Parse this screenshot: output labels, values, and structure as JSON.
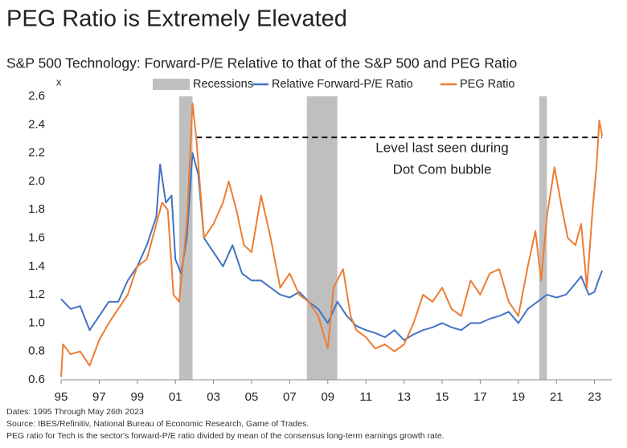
{
  "chart_data": {
    "type": "line",
    "title": "PEG Ratio is Extremely Elevated",
    "subtitle": "S&P 500 Technology: Forward-P/E Relative to that of the S&P 500 and PEG Ratio",
    "y_axis_label": "x",
    "annotation": [
      "Level last seen during",
      "Dot Com bubble"
    ],
    "reference_line": {
      "y": 2.31,
      "xlim": [
        2002.1,
        2023.4
      ]
    },
    "notes": [
      "Dates: 1995 Through May 26th 2023",
      "Source: IBES/Refinitiv, National Bureau of Economic Research, Game of Trades.",
      "PEG ratio for Tech is the sector's forward-P/E ratio divided by mean of the consensus long-term earnings growth rate."
    ],
    "recessions": {
      "name": "Recessions",
      "color": "#bfbfbf",
      "ranges": [
        [
          2001.2,
          2001.9
        ],
        [
          2007.9,
          2009.5
        ],
        [
          2020.1,
          2020.5
        ]
      ]
    },
    "xlim": [
      1995,
      2023.9
    ],
    "xticks": [
      {
        "value": 1995,
        "label": "95"
      },
      {
        "value": 1997,
        "label": "97"
      },
      {
        "value": 1999,
        "label": "99"
      },
      {
        "value": 2001,
        "label": "01"
      },
      {
        "value": 2003,
        "label": "03"
      },
      {
        "value": 2005,
        "label": "05"
      },
      {
        "value": 2007,
        "label": "07"
      },
      {
        "value": 2009,
        "label": "09"
      },
      {
        "value": 2011,
        "label": "11"
      },
      {
        "value": 2013,
        "label": "13"
      },
      {
        "value": 2015,
        "label": "15"
      },
      {
        "value": 2017,
        "label": "17"
      },
      {
        "value": 2019,
        "label": "19"
      },
      {
        "value": 2021,
        "label": "21"
      },
      {
        "value": 2023,
        "label": "23"
      }
    ],
    "ylim": [
      0.6,
      2.6
    ],
    "yticks": [
      0.6,
      0.8,
      {
        "value": 1,
        "label": "1.0"
      },
      1.2,
      1.4,
      1.6,
      1.8,
      {
        "value": 2,
        "label": "2.0"
      },
      2.2,
      2.4,
      2.6
    ],
    "series": [
      {
        "name": "Relative Forward-P/E Ratio",
        "color": "#4472c4",
        "x": [
          1995.0,
          1995.5,
          1996.0,
          1996.5,
          1997.0,
          1997.5,
          1998.0,
          1998.5,
          1999.0,
          1999.5,
          2000.0,
          2000.2,
          2000.5,
          2000.8,
          2001.0,
          2001.3,
          2001.6,
          2001.9,
          2002.2,
          2002.5,
          2003.0,
          2003.5,
          2004.0,
          2004.5,
          2005.0,
          2005.5,
          2006.0,
          2006.5,
          2007.0,
          2007.5,
          2008.0,
          2008.5,
          2009.0,
          2009.5,
          2010.0,
          2010.5,
          2011.0,
          2011.5,
          2012.0,
          2012.5,
          2013.0,
          2013.5,
          2014.0,
          2014.5,
          2015.0,
          2015.5,
          2016.0,
          2016.5,
          2017.0,
          2017.5,
          2018.0,
          2018.5,
          2019.0,
          2019.5,
          2020.0,
          2020.5,
          2021.0,
          2021.5,
          2022.0,
          2022.3,
          2022.7,
          2023.0,
          2023.2,
          2023.4
        ],
        "values": [
          1.17,
          1.1,
          1.12,
          0.95,
          1.05,
          1.15,
          1.15,
          1.3,
          1.4,
          1.55,
          1.75,
          2.12,
          1.85,
          1.9,
          1.45,
          1.35,
          1.6,
          2.2,
          2.05,
          1.6,
          1.5,
          1.4,
          1.55,
          1.35,
          1.3,
          1.3,
          1.25,
          1.2,
          1.18,
          1.22,
          1.15,
          1.1,
          1.0,
          1.15,
          1.05,
          0.98,
          0.95,
          0.93,
          0.9,
          0.95,
          0.88,
          0.92,
          0.95,
          0.97,
          1.0,
          0.97,
          0.95,
          1.0,
          1.0,
          1.03,
          1.05,
          1.08,
          1.0,
          1.1,
          1.15,
          1.2,
          1.18,
          1.2,
          1.28,
          1.33,
          1.2,
          1.22,
          1.3,
          1.37
        ]
      },
      {
        "name": "PEG Ratio",
        "color": "#ed7d31",
        "x": [
          1995.0,
          1995.1,
          1995.5,
          1996.0,
          1996.5,
          1997.0,
          1997.5,
          1998.0,
          1998.5,
          1999.0,
          1999.5,
          2000.0,
          2000.3,
          2000.6,
          2000.9,
          2001.2,
          2001.6,
          2001.9,
          2002.1,
          2002.5,
          2003.0,
          2003.5,
          2003.8,
          2004.2,
          2004.6,
          2005.0,
          2005.5,
          2006.0,
          2006.5,
          2007.0,
          2007.5,
          2008.0,
          2008.5,
          2009.0,
          2009.3,
          2009.8,
          2010.2,
          2010.5,
          2011.0,
          2011.5,
          2012.0,
          2012.5,
          2013.0,
          2013.5,
          2014.0,
          2014.5,
          2015.0,
          2015.5,
          2016.0,
          2016.5,
          2017.0,
          2017.5,
          2018.0,
          2018.5,
          2019.0,
          2019.5,
          2019.9,
          2020.2,
          2020.5,
          2020.9,
          2021.3,
          2021.6,
          2022.0,
          2022.3,
          2022.6,
          2022.9,
          2023.1,
          2023.25,
          2023.4
        ],
        "values": [
          0.62,
          0.85,
          0.78,
          0.8,
          0.7,
          0.88,
          1.0,
          1.1,
          1.2,
          1.4,
          1.45,
          1.7,
          1.85,
          1.8,
          1.2,
          1.15,
          1.7,
          2.55,
          2.3,
          1.6,
          1.7,
          1.85,
          2.0,
          1.8,
          1.55,
          1.5,
          1.9,
          1.6,
          1.25,
          1.35,
          1.2,
          1.15,
          1.05,
          0.82,
          1.25,
          1.38,
          1.05,
          0.95,
          0.9,
          0.82,
          0.85,
          0.8,
          0.85,
          1.0,
          1.2,
          1.15,
          1.25,
          1.1,
          1.05,
          1.3,
          1.2,
          1.35,
          1.38,
          1.15,
          1.05,
          1.4,
          1.65,
          1.3,
          1.75,
          2.1,
          1.8,
          1.6,
          1.55,
          1.7,
          1.25,
          1.8,
          2.1,
          2.43,
          2.32
        ]
      }
    ]
  }
}
